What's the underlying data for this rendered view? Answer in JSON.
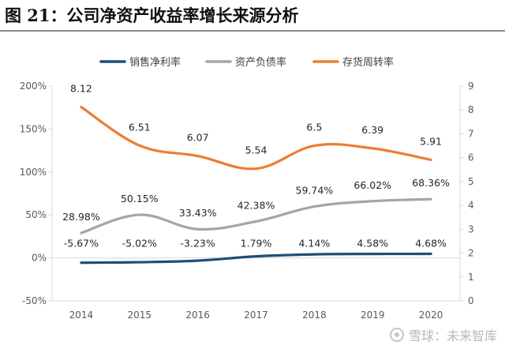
{
  "figure": {
    "title": "图 21：公司净资产收益率增长来源分析",
    "watermark": "雪球：未来智库"
  },
  "colors": {
    "sales_margin": "#1f4e79",
    "debt_ratio": "#a5a5a5",
    "asset_turnover": "#ed7d31",
    "axis": "#d9d9d9"
  },
  "chart_data": {
    "type": "line",
    "x": [
      "2014",
      "2015",
      "2016",
      "2017",
      "2018",
      "2019",
      "2020"
    ],
    "left_axis": {
      "ylim": [
        -50,
        200
      ],
      "ticks": [
        "-50%",
        "0%",
        "50%",
        "100%",
        "150%",
        "200%"
      ],
      "tick_values": [
        -50,
        0,
        50,
        100,
        150,
        200
      ]
    },
    "right_axis": {
      "ylim": [
        0,
        9
      ],
      "ticks": [
        "0",
        "1",
        "2",
        "3",
        "4",
        "5",
        "6",
        "7",
        "8",
        "9"
      ],
      "tick_values": [
        0,
        1,
        2,
        3,
        4,
        5,
        6,
        7,
        8,
        9
      ]
    },
    "legend_position": "top",
    "series": [
      {
        "name": "销售净利率",
        "axis": "left",
        "values": [
          -5.67,
          -5.02,
          -3.23,
          1.79,
          4.14,
          4.58,
          4.68
        ],
        "labels": [
          "-5.67%",
          "-5.02%",
          "-3.23%",
          "1.79%",
          "4.14%",
          "4.58%",
          "4.68%"
        ]
      },
      {
        "name": "资产负债率",
        "axis": "left",
        "values": [
          28.98,
          50.15,
          33.43,
          42.38,
          59.74,
          66.02,
          68.36
        ],
        "labels": [
          "28.98%",
          "50.15%",
          "33.43%",
          "42.38%",
          "59.74%",
          "66.02%",
          "68.36%"
        ]
      },
      {
        "name": "存货周转率",
        "axis": "right",
        "values": [
          8.12,
          6.51,
          6.07,
          5.54,
          6.5,
          6.39,
          5.91
        ],
        "labels": [
          "8.12",
          "6.51",
          "6.07",
          "5.54",
          "6.5",
          "6.39",
          "5.91"
        ]
      }
    ]
  }
}
